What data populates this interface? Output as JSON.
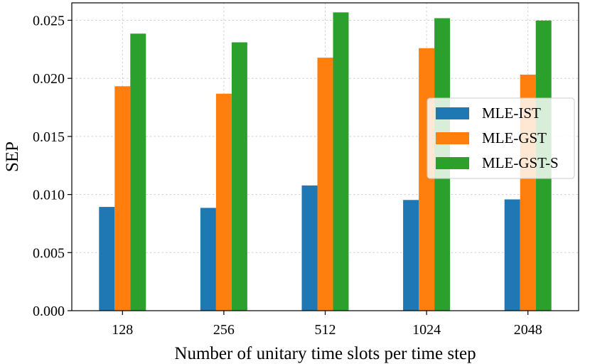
{
  "chart_data": {
    "type": "bar",
    "title": "",
    "xlabel": "Number of unitary time slots per time step",
    "ylabel": "SEP",
    "categories": [
      "128",
      "256",
      "512",
      "1024",
      "2048"
    ],
    "series": [
      {
        "name": "MLE-IST",
        "color": "#1f77b4",
        "values": [
          0.00893,
          0.00885,
          0.01078,
          0.00953,
          0.00958
        ]
      },
      {
        "name": "MLE-GST",
        "color": "#ff7f0e",
        "values": [
          0.01932,
          0.01868,
          0.02178,
          0.0226,
          0.02032
        ]
      },
      {
        "name": "MLE-GST-S",
        "color": "#2ca02c",
        "values": [
          0.02385,
          0.0231,
          0.02568,
          0.02518,
          0.02498
        ]
      }
    ],
    "ylim": [
      0,
      0.0265
    ],
    "yticks": [
      "0.000",
      "0.005",
      "0.010",
      "0.015",
      "0.020",
      "0.025"
    ],
    "grid": true,
    "legend_position": "right"
  }
}
